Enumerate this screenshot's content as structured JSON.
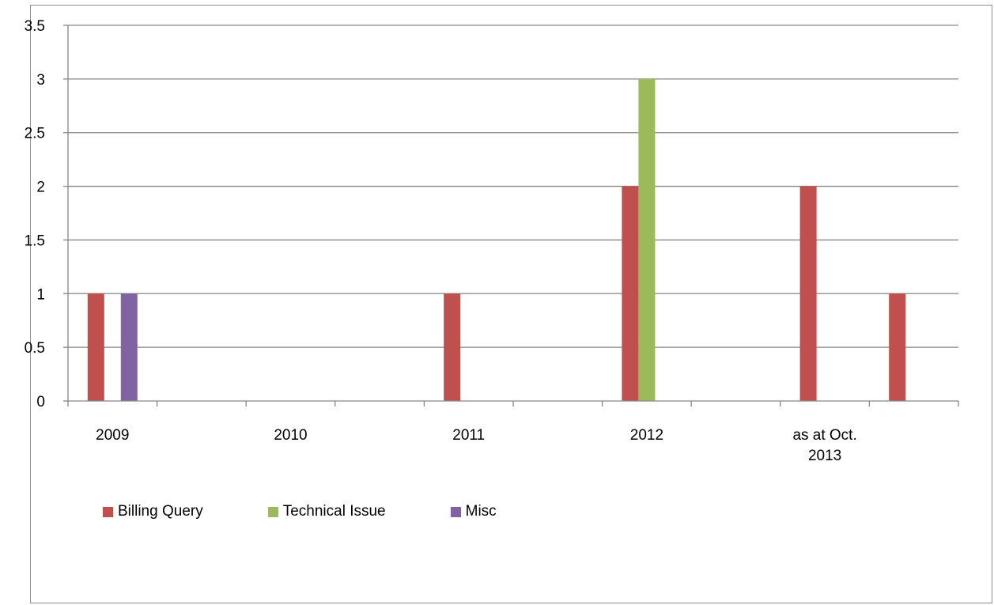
{
  "chart_data": {
    "type": "bar",
    "categories": [
      "2009",
      "",
      "2010",
      "",
      "2011",
      "",
      "2012",
      "",
      "as at Oct. 2013",
      ""
    ],
    "category_label_lines": [
      [
        "2009"
      ],
      [],
      [
        "2010"
      ],
      [],
      [
        "2011"
      ],
      [],
      [
        "2012"
      ],
      [],
      [
        "as at Oct.",
        "2013"
      ],
      []
    ],
    "series": [
      {
        "name": "Billing Query",
        "color": "#c0504d",
        "values": [
          1,
          0,
          0,
          0,
          1,
          0,
          2,
          0,
          2,
          1
        ]
      },
      {
        "name": "Technical Issue",
        "color": "#9bbb59",
        "values": [
          0,
          0,
          0,
          0,
          0,
          0,
          3,
          0,
          0,
          0
        ]
      },
      {
        "name": "Misc",
        "color": "#8064a2",
        "values": [
          1,
          0,
          0,
          0,
          0,
          0,
          0,
          0,
          0,
          0
        ]
      }
    ],
    "ylim": [
      0,
      3.5
    ],
    "yticks": [
      "0",
      "0.5",
      "1",
      "1.5",
      "2",
      "2.5",
      "3",
      "3.5"
    ],
    "grid": true,
    "legend_position": "bottom-left"
  }
}
